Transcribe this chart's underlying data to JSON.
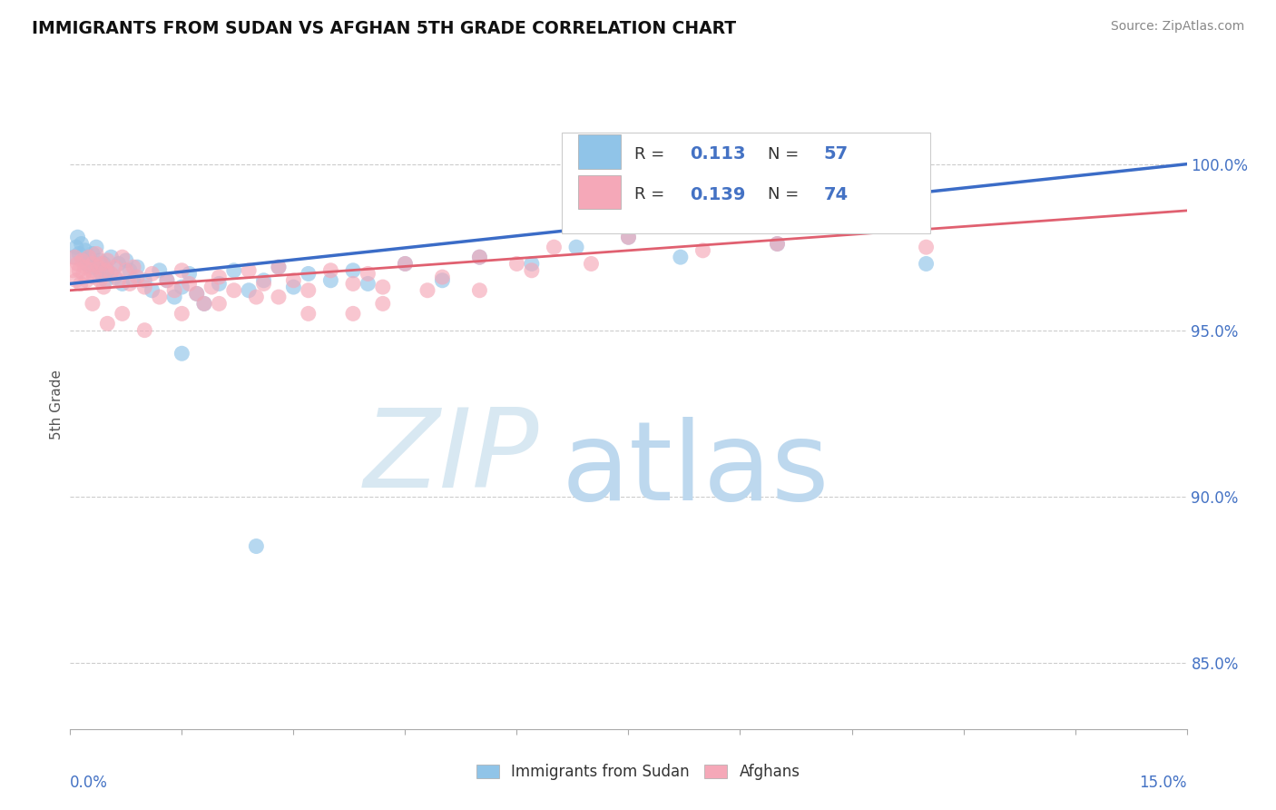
{
  "title": "IMMIGRANTS FROM SUDAN VS AFGHAN 5TH GRADE CORRELATION CHART",
  "source_text": "Source: ZipAtlas.com",
  "ylabel": "5th Grade",
  "xlim": [
    0.0,
    15.0
  ],
  "ylim": [
    83.0,
    102.5
  ],
  "yticks": [
    85.0,
    90.0,
    95.0,
    100.0
  ],
  "ytick_labels": [
    "85.0%",
    "90.0%",
    "95.0%",
    "100.0%"
  ],
  "legend_R_sudan": "0.113",
  "legend_N_sudan": "57",
  "legend_R_afghan": "0.139",
  "legend_N_afghan": "74",
  "legend_label_sudan": "Immigrants from Sudan",
  "legend_label_afghan": "Afghans",
  "sudan_color": "#90C4E8",
  "afghan_color": "#F5A8B8",
  "sudan_line_color": "#3B6CC7",
  "afghan_line_color": "#E06070",
  "watermark_zip": "ZIP",
  "watermark_atlas": "atlas",
  "watermark_zip_color": "#D8E8F2",
  "watermark_atlas_color": "#BDD8EE",
  "axis_label_color": "#4472C4",
  "title_color": "#111111",
  "source_color": "#888888",
  "grid_color": "#CCCCCC",
  "blue_line_y0": 96.4,
  "blue_line_y1": 100.0,
  "pink_line_y0": 96.2,
  "pink_line_y1": 98.6,
  "sudan_x": [
    0.05,
    0.08,
    0.1,
    0.12,
    0.15,
    0.18,
    0.2,
    0.22,
    0.25,
    0.28,
    0.3,
    0.32,
    0.35,
    0.38,
    0.4,
    0.42,
    0.45,
    0.48,
    0.5,
    0.55,
    0.6,
    0.65,
    0.7,
    0.75,
    0.8,
    0.85,
    0.9,
    1.0,
    1.1,
    1.2,
    1.3,
    1.4,
    1.5,
    1.6,
    1.7,
    1.8,
    2.0,
    2.2,
    2.4,
    2.6,
    2.8,
    3.0,
    3.2,
    3.5,
    3.8,
    4.0,
    4.5,
    5.0,
    5.5,
    6.2,
    6.8,
    7.5,
    8.2,
    9.5,
    11.5,
    1.5,
    2.5
  ],
  "sudan_y": [
    97.2,
    97.5,
    97.8,
    97.3,
    97.6,
    97.1,
    97.4,
    97.0,
    97.2,
    96.9,
    97.3,
    97.0,
    97.5,
    96.8,
    97.1,
    96.7,
    97.0,
    96.5,
    96.8,
    97.2,
    96.6,
    97.0,
    96.4,
    97.1,
    96.8,
    96.5,
    96.9,
    96.5,
    96.2,
    96.8,
    96.5,
    96.0,
    96.3,
    96.7,
    96.1,
    95.8,
    96.4,
    96.8,
    96.2,
    96.5,
    96.9,
    96.3,
    96.7,
    96.5,
    96.8,
    96.4,
    97.0,
    96.5,
    97.2,
    97.0,
    97.5,
    97.8,
    97.2,
    97.6,
    97.0,
    94.3,
    88.5
  ],
  "afghan_x": [
    0.04,
    0.06,
    0.08,
    0.1,
    0.12,
    0.14,
    0.16,
    0.18,
    0.2,
    0.22,
    0.25,
    0.28,
    0.3,
    0.32,
    0.35,
    0.38,
    0.4,
    0.42,
    0.45,
    0.48,
    0.5,
    0.55,
    0.6,
    0.65,
    0.7,
    0.75,
    0.8,
    0.85,
    0.9,
    1.0,
    1.1,
    1.2,
    1.3,
    1.4,
    1.5,
    1.6,
    1.7,
    1.8,
    1.9,
    2.0,
    2.2,
    2.4,
    2.6,
    2.8,
    3.0,
    3.2,
    3.5,
    3.8,
    4.0,
    4.2,
    4.5,
    5.0,
    5.5,
    6.0,
    6.5,
    7.5,
    8.5,
    9.5,
    11.5,
    2.5,
    3.2,
    4.2,
    5.5,
    7.0,
    0.3,
    0.5,
    0.7,
    1.0,
    1.5,
    2.0,
    2.8,
    3.8,
    4.8,
    6.2
  ],
  "afghan_y": [
    96.8,
    97.2,
    96.5,
    97.0,
    96.8,
    96.4,
    97.1,
    96.7,
    96.9,
    96.5,
    97.2,
    96.8,
    97.0,
    96.6,
    97.3,
    96.9,
    96.5,
    97.0,
    96.3,
    96.8,
    97.1,
    96.7,
    96.9,
    96.5,
    97.2,
    96.8,
    96.4,
    96.9,
    96.6,
    96.3,
    96.7,
    96.0,
    96.5,
    96.2,
    96.8,
    96.4,
    96.1,
    95.8,
    96.3,
    96.6,
    96.2,
    96.8,
    96.4,
    96.9,
    96.5,
    96.2,
    96.8,
    96.4,
    96.7,
    96.3,
    97.0,
    96.6,
    97.2,
    97.0,
    97.5,
    97.8,
    97.4,
    97.6,
    97.5,
    96.0,
    95.5,
    95.8,
    96.2,
    97.0,
    95.8,
    95.2,
    95.5,
    95.0,
    95.5,
    95.8,
    96.0,
    95.5,
    96.2,
    96.8
  ],
  "xtick_positions": [
    0.0,
    1.5,
    3.0,
    4.5,
    6.0,
    7.5,
    9.0,
    10.5,
    12.0,
    13.5,
    15.0
  ]
}
